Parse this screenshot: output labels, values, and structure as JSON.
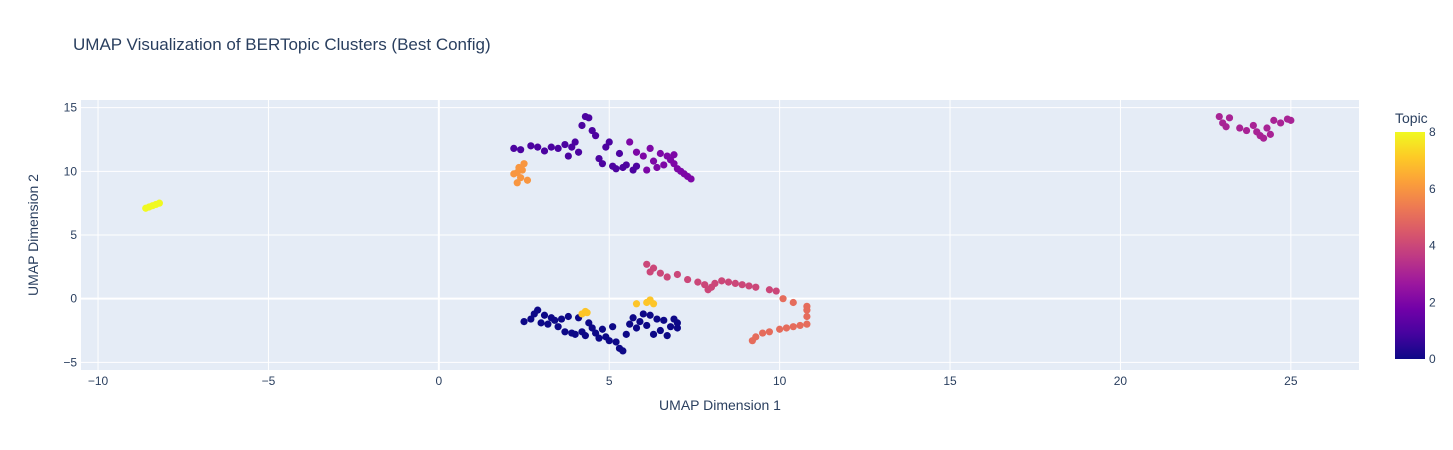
{
  "chart_data": {
    "type": "scatter",
    "title": "UMAP Visualization of BERTopic Clusters (Best Config)",
    "xlabel": "UMAP Dimension 1",
    "ylabel": "UMAP Dimension 2",
    "xlim": [
      -10.5,
      27
    ],
    "ylim": [
      -5.6,
      15.6
    ],
    "xticks": [
      -10,
      -5,
      0,
      5,
      10,
      15,
      20,
      25
    ],
    "yticks": [
      -5,
      0,
      5,
      10,
      15
    ],
    "xtick_labels": [
      "−10",
      "−5",
      "0",
      "5",
      "10",
      "15",
      "20",
      "25"
    ],
    "ytick_labels": [
      "−5",
      "0",
      "5",
      "10",
      "15"
    ],
    "grid": true,
    "colorbar": {
      "title": "Topic",
      "range": [
        0,
        8
      ],
      "ticks": [
        0,
        2,
        4,
        6,
        8
      ],
      "tick_labels": [
        "0",
        "2",
        "4",
        "6",
        "8"
      ],
      "colorscale": [
        "#0d0887",
        "#46039f",
        "#7201a8",
        "#9c179e",
        "#bd3786",
        "#d8576b",
        "#ed7953",
        "#fb9f3a",
        "#fdca26",
        "#f0f921"
      ]
    },
    "series": [
      {
        "topic": 0,
        "points": [
          [
            2.5,
            -1.8
          ],
          [
            2.7,
            -1.6
          ],
          [
            2.8,
            -1.2
          ],
          [
            2.9,
            -0.9
          ],
          [
            3.0,
            -1.9
          ],
          [
            3.1,
            -1.3
          ],
          [
            3.2,
            -2.0
          ],
          [
            3.3,
            -1.5
          ],
          [
            3.4,
            -1.7
          ],
          [
            3.5,
            -2.2
          ],
          [
            3.6,
            -1.6
          ],
          [
            3.7,
            -2.6
          ],
          [
            3.8,
            -1.4
          ],
          [
            3.9,
            -2.7
          ],
          [
            4.0,
            -2.8
          ],
          [
            4.1,
            -1.5
          ],
          [
            4.2,
            -2.6
          ],
          [
            4.3,
            -2.9
          ],
          [
            4.4,
            -1.9
          ],
          [
            4.5,
            -2.3
          ],
          [
            4.6,
            -2.7
          ],
          [
            4.7,
            -3.1
          ],
          [
            4.8,
            -2.4
          ],
          [
            4.9,
            -3.0
          ],
          [
            5.0,
            -3.3
          ],
          [
            5.1,
            -2.2
          ],
          [
            5.2,
            -3.4
          ],
          [
            5.3,
            -3.9
          ],
          [
            5.4,
            -4.1
          ],
          [
            5.5,
            -2.8
          ],
          [
            5.6,
            -2.0
          ],
          [
            5.7,
            -1.5
          ],
          [
            5.8,
            -2.3
          ],
          [
            5.9,
            -1.8
          ],
          [
            6.0,
            -1.2
          ],
          [
            6.1,
            -2.1
          ],
          [
            6.2,
            -1.3
          ],
          [
            6.3,
            -2.8
          ],
          [
            6.4,
            -1.6
          ],
          [
            6.5,
            -2.5
          ],
          [
            6.6,
            -1.7
          ],
          [
            6.7,
            -2.9
          ],
          [
            6.8,
            -2.2
          ],
          [
            6.9,
            -1.6
          ],
          [
            7.0,
            -2.3
          ],
          [
            7.0,
            -1.9
          ]
        ]
      },
      {
        "topic": 1,
        "points": [
          [
            2.2,
            11.8
          ],
          [
            2.4,
            11.7
          ],
          [
            2.7,
            12.0
          ],
          [
            2.9,
            11.9
          ],
          [
            3.1,
            11.6
          ],
          [
            3.3,
            11.9
          ],
          [
            3.5,
            11.8
          ],
          [
            3.7,
            12.1
          ],
          [
            3.8,
            11.2
          ],
          [
            3.9,
            11.9
          ],
          [
            4.0,
            12.3
          ],
          [
            4.1,
            11.5
          ],
          [
            4.2,
            13.6
          ],
          [
            4.3,
            14.3
          ],
          [
            4.4,
            14.2
          ],
          [
            4.5,
            13.2
          ],
          [
            4.6,
            12.8
          ],
          [
            4.7,
            11.0
          ],
          [
            4.8,
            10.6
          ],
          [
            4.9,
            11.9
          ],
          [
            5.0,
            12.3
          ],
          [
            5.1,
            10.4
          ],
          [
            5.2,
            10.2
          ],
          [
            5.3,
            11.4
          ],
          [
            5.4,
            10.3
          ],
          [
            5.5,
            10.5
          ],
          [
            5.7,
            10.1
          ],
          [
            5.8,
            10.4
          ]
        ]
      },
      {
        "topic": 2,
        "points": [
          [
            5.6,
            12.3
          ],
          [
            5.8,
            11.5
          ],
          [
            6.0,
            11.2
          ],
          [
            6.2,
            11.8
          ],
          [
            6.3,
            10.8
          ],
          [
            6.5,
            11.4
          ],
          [
            6.6,
            10.5
          ],
          [
            6.7,
            11.2
          ],
          [
            6.8,
            10.9
          ],
          [
            6.9,
            10.6
          ],
          [
            7.0,
            10.2
          ],
          [
            7.1,
            10.0
          ],
          [
            7.2,
            9.8
          ],
          [
            7.3,
            9.6
          ],
          [
            7.4,
            9.4
          ],
          [
            6.1,
            10.1
          ],
          [
            6.4,
            10.3
          ],
          [
            6.9,
            11.3
          ]
        ]
      },
      {
        "topic": 3,
        "points": [
          [
            22.9,
            14.3
          ],
          [
            23.0,
            13.8
          ],
          [
            23.1,
            13.5
          ],
          [
            23.2,
            14.2
          ],
          [
            23.5,
            13.4
          ],
          [
            23.7,
            13.2
          ],
          [
            23.9,
            13.6
          ],
          [
            24.0,
            13.1
          ],
          [
            24.1,
            12.8
          ],
          [
            24.2,
            12.6
          ],
          [
            24.3,
            13.4
          ],
          [
            24.4,
            12.9
          ],
          [
            24.5,
            14.0
          ],
          [
            24.7,
            13.8
          ],
          [
            24.9,
            14.1
          ],
          [
            25.0,
            14.0
          ]
        ]
      },
      {
        "topic": 4,
        "points": [
          [
            6.1,
            2.7
          ],
          [
            6.2,
            2.1
          ],
          [
            6.3,
            2.4
          ],
          [
            6.5,
            2.0
          ],
          [
            6.7,
            1.7
          ],
          [
            7.0,
            1.9
          ],
          [
            7.3,
            1.5
          ],
          [
            7.6,
            1.3
          ],
          [
            7.8,
            1.1
          ],
          [
            8.0,
            0.9
          ],
          [
            8.1,
            1.2
          ],
          [
            8.3,
            1.4
          ],
          [
            8.5,
            1.3
          ],
          [
            8.7,
            1.2
          ],
          [
            8.9,
            1.1
          ],
          [
            9.1,
            1.0
          ],
          [
            9.3,
            0.9
          ],
          [
            9.7,
            0.7
          ],
          [
            9.9,
            0.6
          ],
          [
            7.9,
            0.7
          ]
        ]
      },
      {
        "topic": 5,
        "points": [
          [
            9.2,
            -3.3
          ],
          [
            9.3,
            -3.0
          ],
          [
            9.5,
            -2.7
          ],
          [
            9.7,
            -2.6
          ],
          [
            10.0,
            -2.4
          ],
          [
            10.2,
            -2.3
          ],
          [
            10.4,
            -2.2
          ],
          [
            10.6,
            -2.1
          ],
          [
            10.8,
            -2.0
          ],
          [
            10.8,
            -1.4
          ],
          [
            10.8,
            -0.9
          ],
          [
            10.8,
            -0.6
          ],
          [
            10.4,
            -0.3
          ],
          [
            10.1,
            0.0
          ]
        ]
      },
      {
        "topic": 6,
        "points": [
          [
            2.2,
            9.8
          ],
          [
            2.3,
            9.1
          ],
          [
            2.35,
            10.3
          ],
          [
            2.4,
            9.5
          ],
          [
            2.5,
            10.6
          ],
          [
            2.6,
            9.3
          ],
          [
            2.3,
            9.9
          ],
          [
            2.45,
            10.1
          ]
        ]
      },
      {
        "topic": 7,
        "points": [
          [
            4.2,
            -1.2
          ],
          [
            4.3,
            -1.0
          ],
          [
            4.35,
            -1.1
          ],
          [
            5.8,
            -0.4
          ],
          [
            6.1,
            -0.3
          ],
          [
            6.2,
            -0.1
          ],
          [
            6.3,
            -0.4
          ]
        ]
      },
      {
        "topic": 8,
        "points": [
          [
            -8.6,
            7.1
          ],
          [
            -8.5,
            7.2
          ],
          [
            -8.4,
            7.3
          ],
          [
            -8.3,
            7.4
          ],
          [
            -8.2,
            7.5
          ]
        ]
      }
    ]
  }
}
